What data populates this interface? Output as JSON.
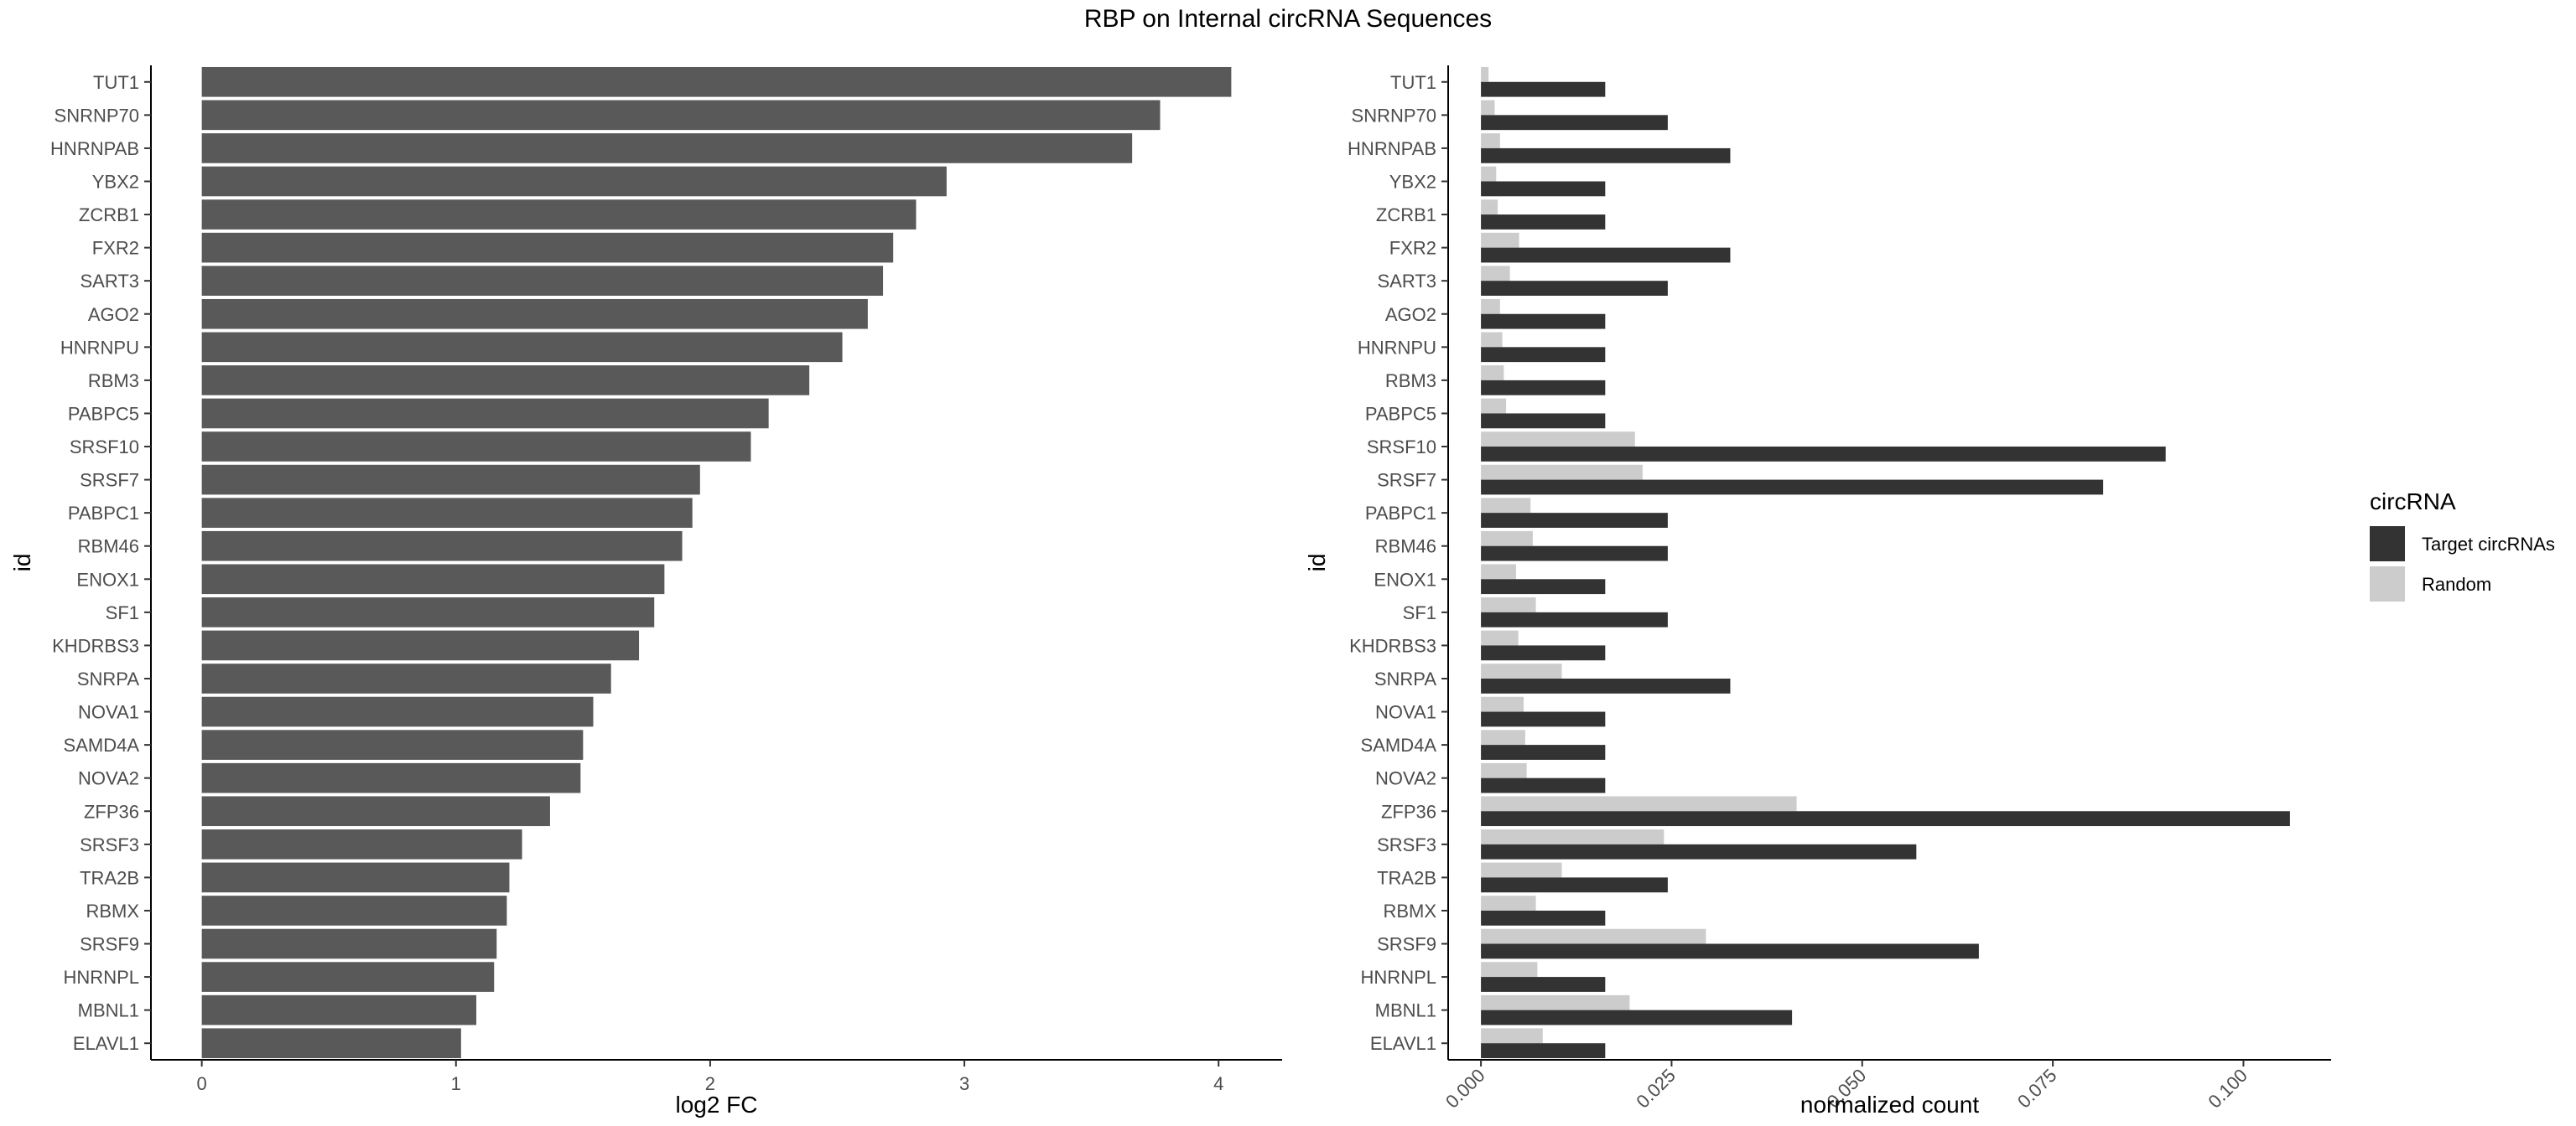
{
  "figure_title": "RBP on Internal circRNA Sequences",
  "chart_data": [
    {
      "type": "bar",
      "orientation": "horizontal",
      "categories": [
        "TUT1",
        "SNRNP70",
        "HNRNPAB",
        "YBX2",
        "ZCRB1",
        "FXR2",
        "SART3",
        "AGO2",
        "HNRNPU",
        "RBM3",
        "PABPC5",
        "SRSF10",
        "SRSF7",
        "PABPC1",
        "RBM46",
        "ENOX1",
        "SF1",
        "KHDRBS3",
        "SNRPA",
        "NOVA1",
        "SAMD4A",
        "NOVA2",
        "ZFP36",
        "SRSF3",
        "TRA2B",
        "RBMX",
        "SRSF9",
        "HNRNPL",
        "MBNL1",
        "ELAVL1"
      ],
      "values": [
        4.05,
        3.77,
        3.66,
        2.93,
        2.81,
        2.72,
        2.68,
        2.62,
        2.52,
        2.39,
        2.23,
        2.16,
        1.96,
        1.93,
        1.89,
        1.82,
        1.78,
        1.72,
        1.61,
        1.54,
        1.5,
        1.49,
        1.37,
        1.26,
        1.21,
        1.2,
        1.16,
        1.15,
        1.08,
        1.02
      ],
      "xlabel": "log2 FC",
      "ylabel": "id",
      "xlim": [
        -0.2,
        4.25
      ],
      "xticks": [
        "0",
        "1",
        "2",
        "3",
        "4"
      ],
      "bar_color": "#595959",
      "grid": false
    },
    {
      "type": "bar",
      "orientation": "horizontal",
      "grouped": true,
      "categories": [
        "TUT1",
        "SNRNP70",
        "HNRNPAB",
        "YBX2",
        "ZCRB1",
        "FXR2",
        "SART3",
        "AGO2",
        "HNRNPU",
        "RBM3",
        "PABPC5",
        "SRSF10",
        "SRSF7",
        "PABPC1",
        "RBM46",
        "ENOX1",
        "SF1",
        "KHDRBS3",
        "SNRPA",
        "NOVA1",
        "SAMD4A",
        "NOVA2",
        "ZFP36",
        "SRSF3",
        "TRA2B",
        "RBMX",
        "SRSF9",
        "HNRNPL",
        "MBNL1",
        "ELAVL1"
      ],
      "series": [
        {
          "name": "Target circRNAs",
          "color": "#333333",
          "values": [
            0.0163,
            0.0245,
            0.0327,
            0.0163,
            0.0163,
            0.0327,
            0.0245,
            0.0163,
            0.0163,
            0.0163,
            0.0163,
            0.0898,
            0.0816,
            0.0245,
            0.0245,
            0.0163,
            0.0245,
            0.0163,
            0.0327,
            0.0163,
            0.0163,
            0.0163,
            0.1061,
            0.0571,
            0.0245,
            0.0163,
            0.0653,
            0.0163,
            0.0408,
            0.0163
          ]
        },
        {
          "name": "Random",
          "color": "#cccccc",
          "values": [
            0.001,
            0.0018,
            0.0025,
            0.002,
            0.0022,
            0.005,
            0.0038,
            0.0025,
            0.0028,
            0.003,
            0.0033,
            0.0202,
            0.0212,
            0.0065,
            0.0068,
            0.0046,
            0.0072,
            0.0049,
            0.0106,
            0.0056,
            0.0058,
            0.006,
            0.0414,
            0.024,
            0.0106,
            0.0072,
            0.0295,
            0.0074,
            0.0195,
            0.0081
          ]
        }
      ],
      "xlabel": "normalized count",
      "ylabel": "id",
      "xlim": [
        -0.0043,
        0.1115
      ],
      "xticks": [
        "0.000",
        "0.025",
        "0.050",
        "0.075",
        "0.100"
      ],
      "legend_title": "circRNA",
      "legend_position": "right",
      "grid": false
    }
  ]
}
